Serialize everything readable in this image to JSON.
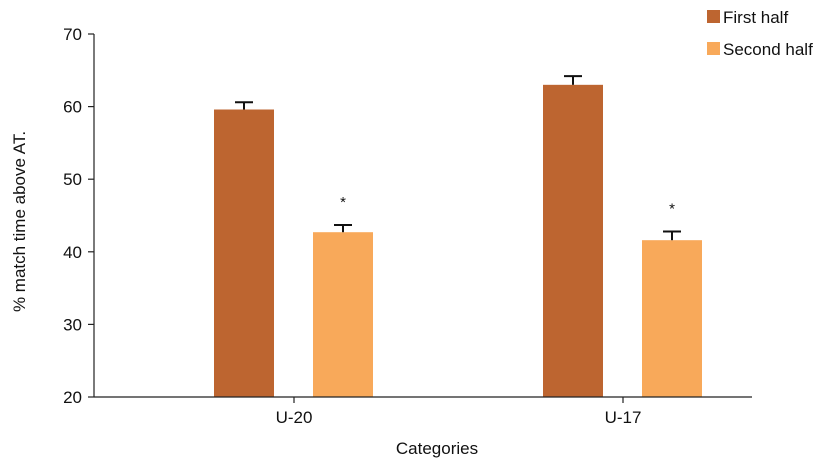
{
  "chart_data": {
    "type": "bar",
    "xlabel": "Categories",
    "ylabel": "% match time above AT.",
    "ylim": [
      20,
      70
    ],
    "yticks": [
      20,
      30,
      40,
      50,
      60,
      70
    ],
    "categories": [
      "U-20",
      "U-17"
    ],
    "series": [
      {
        "name": "First half",
        "color": "#bd6530",
        "values": [
          59.6,
          63.0
        ],
        "error": [
          1.0,
          1.2
        ],
        "annotations": [
          "",
          ""
        ]
      },
      {
        "name": "Second half",
        "color": "#f8a95a",
        "values": [
          42.7,
          41.6
        ],
        "error": [
          1.0,
          1.2
        ],
        "annotations": [
          "*",
          "*"
        ]
      }
    ],
    "grid": false,
    "legend": "top-right"
  }
}
